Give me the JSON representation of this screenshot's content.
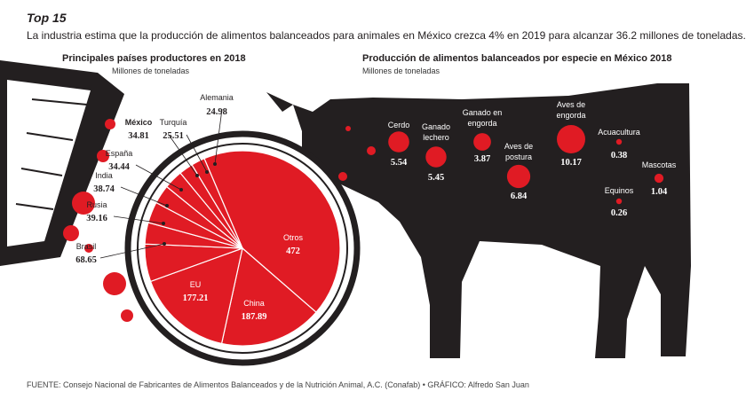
{
  "header": {
    "title": "Top 15",
    "intro": "La industria estima que la producción de alimentos balanceados para animales en México crezca 4% en 2019 para alcanzar 36.2 millones de toneladas."
  },
  "footer": "FUENTE: Consejo Nacional de Fabricantes de Alimentos Balanceados y de la Nutrición Animal, A.C. (Conafab) • GRÁFICO: Alfredo San Juan",
  "colors": {
    "red": "#e01b24",
    "black": "#231f20",
    "white": "#ffffff"
  },
  "chart_data": [
    {
      "type": "pie",
      "title": "Principales países productores en 2018",
      "subtitle": "Millones de toneladas",
      "slices": [
        {
          "label": "Otros",
          "value": 472
        },
        {
          "label": "China",
          "value": 187.89
        },
        {
          "label": "EU",
          "value": 177.21
        },
        {
          "label": "Brasil",
          "value": 68.65
        },
        {
          "label": "Rusia",
          "value": 39.16
        },
        {
          "label": "India",
          "value": 38.74
        },
        {
          "label": "España",
          "value": 34.44
        },
        {
          "label": "México",
          "value": 34.81
        },
        {
          "label": "Turquía",
          "value": 25.51
        },
        {
          "label": "Alemania",
          "value": 24.98
        }
      ],
      "value_labels": [
        "472",
        "187.89",
        "177.21",
        "68.65",
        "39.16",
        "38.74",
        "34.44",
        "34.81",
        "25.51",
        "24.98"
      ],
      "highlight": "México"
    },
    {
      "type": "scatter",
      "title": "Producción de alimentos balanceados por especie en México 2018",
      "subtitle": "Millones de toneladas",
      "points": [
        {
          "label": "Cerdo",
          "value": 5.54
        },
        {
          "label": "Ganado lechero",
          "value": 5.45
        },
        {
          "label": "Ganado en engorda",
          "value": 3.87
        },
        {
          "label": "Aves de postura",
          "value": 6.84
        },
        {
          "label": "Aves de engorda",
          "value": 10.17
        },
        {
          "label": "Acuacultura",
          "value": 0.38
        },
        {
          "label": "Equinos",
          "value": 0.26
        },
        {
          "label": "Mascotas",
          "value": 1.04
        }
      ],
      "value_labels": [
        "5.54",
        "5.45",
        "3.87",
        "6.84",
        "10.17",
        "0.38",
        "0.26",
        "1.04"
      ]
    }
  ]
}
